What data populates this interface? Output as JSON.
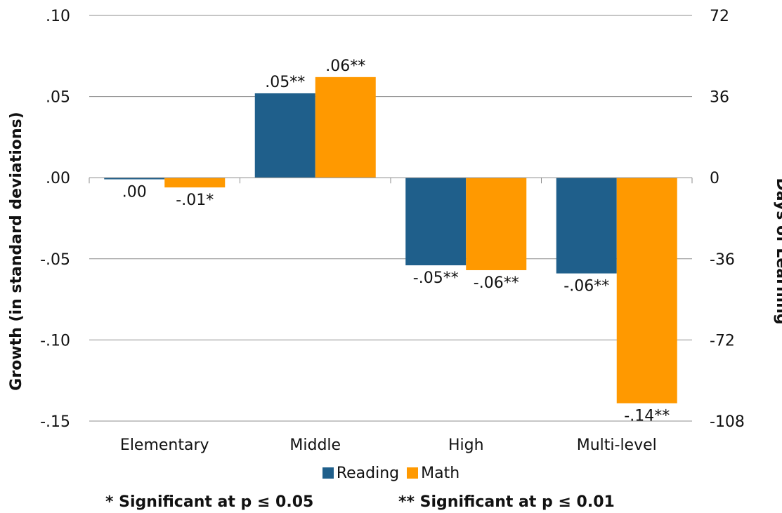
{
  "chart_data": {
    "type": "bar",
    "categories": [
      "Elementary",
      "Middle",
      "High",
      "Multi-level"
    ],
    "series": [
      {
        "name": "Reading",
        "color": "#1F5F8B",
        "values": [
          -0.001,
          0.052,
          -0.054,
          -0.059
        ],
        "labels": [
          ".00",
          ".05**",
          "-.05**",
          "-.06**"
        ]
      },
      {
        "name": "Math",
        "color": "#FF9900",
        "values": [
          -0.006,
          0.062,
          -0.057,
          -0.139
        ],
        "labels": [
          "-.01*",
          ".06**",
          "-.06**",
          "-.14**"
        ]
      }
    ],
    "ylabel": "Growth (in standard deviations)",
    "ylabel_right": "Days of Learning",
    "ylim": [
      -0.15,
      0.1
    ],
    "yticks": [
      0.1,
      0.05,
      0.0,
      -0.05,
      -0.1,
      -0.15
    ],
    "ytick_labels": [
      ".10",
      ".05",
      ".00",
      "-.05",
      "-.10",
      "-.15"
    ],
    "y2ticks": [
      72,
      36,
      0,
      -36,
      -72,
      -108
    ],
    "y2tick_labels": [
      "72",
      "36",
      "0",
      "-36",
      "-72",
      "-108"
    ],
    "grid": true,
    "legend_position": "bottom"
  },
  "footnotes": {
    "single": "* Significant at p ≤ 0.05",
    "double": "** Significant at p ≤ 0.01"
  }
}
